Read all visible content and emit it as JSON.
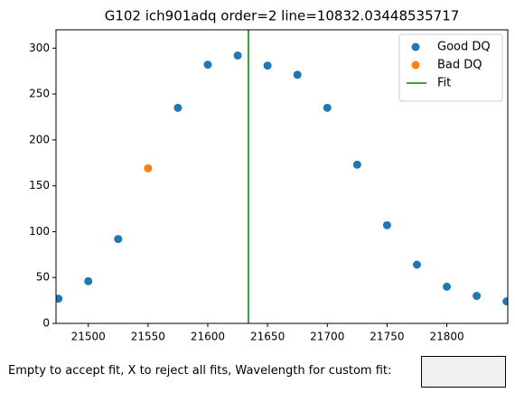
{
  "chart_data": {
    "type": "scatter",
    "title": "G102 ich901adq order=2 line=10832.03448535717",
    "xlim": [
      21473,
      21851
    ],
    "xticks": [
      21500,
      21550,
      21600,
      21650,
      21700,
      21750,
      21800
    ],
    "ylim": [
      0,
      320
    ],
    "yticks": [
      0,
      50,
      100,
      150,
      200,
      250,
      300
    ],
    "series": [
      {
        "name": "Good DQ",
        "color": "#1f77b4",
        "x": [
          21475,
          21500,
          21525,
          21575,
          21600,
          21625,
          21650,
          21675,
          21700,
          21725,
          21750,
          21775,
          21800,
          21825,
          21850
        ],
        "values": [
          27,
          46,
          92,
          235,
          282,
          292,
          281,
          271,
          235,
          173,
          107,
          64,
          40,
          30,
          24
        ]
      },
      {
        "name": "Bad DQ",
        "color": "#ff7f0e",
        "x": [
          21550
        ],
        "values": [
          169
        ]
      }
    ],
    "fit": {
      "name": "Fit",
      "color": "green",
      "x": 21634
    },
    "legend": "upper right"
  },
  "input_label": "Empty to accept fit, X to reject all fits, Wavelength for custom fit:"
}
